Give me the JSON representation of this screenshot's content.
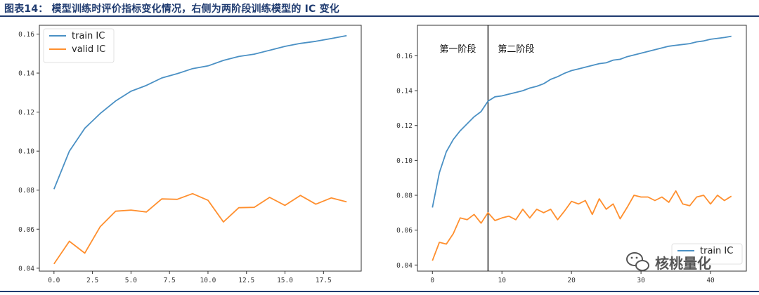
{
  "header": {
    "title": "图表14：  模型训练时评价指标变化情况，右侧为两阶段训练模型的 IC 变化"
  },
  "watermark": {
    "text": "核桃量化",
    "icon": "wechat-icon"
  },
  "colors": {
    "train": "#4a90c4",
    "valid": "#ff8f2e",
    "header": "#1f3b70"
  },
  "chart_data": [
    {
      "type": "line",
      "title": "",
      "xlabel": "",
      "ylabel": "",
      "xlim": [
        -0.95,
        19.95
      ],
      "ylim": [
        0.0385,
        0.1645
      ],
      "xticks": [
        "0.0",
        "2.5",
        "5.0",
        "7.5",
        "10.0",
        "12.5",
        "15.0",
        "17.5"
      ],
      "xtick_values": [
        0,
        2.5,
        5,
        7.5,
        10,
        12.5,
        15,
        17.5
      ],
      "yticks": [
        "0.04",
        "0.06",
        "0.08",
        "0.10",
        "0.12",
        "0.14",
        "0.16"
      ],
      "ytick_values": [
        0.04,
        0.06,
        0.08,
        0.1,
        0.12,
        0.14,
        0.16
      ],
      "legend_position": "upper-left",
      "series": [
        {
          "name": "train IC",
          "color": "#4a90c4",
          "x": [
            0,
            1,
            2,
            3,
            4,
            5,
            6,
            7,
            8,
            9,
            10,
            11,
            12,
            13,
            14,
            15,
            16,
            17,
            18,
            19
          ],
          "values": [
            0.0805,
            0.1,
            0.1117,
            0.1193,
            0.1257,
            0.1307,
            0.1337,
            0.1375,
            0.1397,
            0.1423,
            0.1437,
            0.1465,
            0.1485,
            0.1497,
            0.1517,
            0.1537,
            0.1552,
            0.1563,
            0.1577,
            0.1592
          ]
        },
        {
          "name": "valid IC",
          "color": "#ff8f2e",
          "x": [
            0,
            1,
            2,
            3,
            4,
            5,
            6,
            7,
            8,
            9,
            10,
            11,
            12,
            13,
            14,
            15,
            16,
            17,
            18,
            19
          ],
          "values": [
            0.0422,
            0.0538,
            0.0477,
            0.0613,
            0.0692,
            0.0698,
            0.0688,
            0.0755,
            0.0753,
            0.0782,
            0.0748,
            0.0637,
            0.071,
            0.0712,
            0.0763,
            0.0722,
            0.0773,
            0.0728,
            0.076,
            0.074
          ]
        }
      ]
    },
    {
      "type": "line",
      "title": "",
      "xlabel": "",
      "ylabel": "",
      "xlim": [
        -2.15,
        45.15
      ],
      "ylim": [
        0.0365,
        0.1775
      ],
      "xticks": [
        "0",
        "10",
        "20",
        "30",
        "40"
      ],
      "xtick_values": [
        0,
        10,
        20,
        30,
        40
      ],
      "yticks": [
        "0.04",
        "0.06",
        "0.08",
        "0.10",
        "0.12",
        "0.14",
        "0.16"
      ],
      "ytick_values": [
        0.04,
        0.06,
        0.08,
        0.1,
        0.12,
        0.14,
        0.16
      ],
      "legend_position": "lower-right",
      "stage_divider_x": 8,
      "annotations": [
        "第一阶段",
        "第二阶段"
      ],
      "series": [
        {
          "name": "train IC",
          "color": "#4a90c4",
          "x": [
            0,
            1,
            2,
            3,
            4,
            5,
            6,
            7,
            8,
            9,
            10,
            11,
            12,
            13,
            14,
            15,
            16,
            17,
            18,
            19,
            20,
            21,
            22,
            23,
            24,
            25,
            26,
            27,
            28,
            29,
            30,
            31,
            32,
            33,
            34,
            35,
            36,
            37,
            38,
            39,
            40,
            41,
            42,
            43
          ],
          "values": [
            0.073,
            0.093,
            0.105,
            0.112,
            0.117,
            0.121,
            0.125,
            0.128,
            0.134,
            0.1365,
            0.137,
            0.138,
            0.139,
            0.14,
            0.1415,
            0.1425,
            0.144,
            0.1465,
            0.148,
            0.15,
            0.1515,
            0.1525,
            0.1535,
            0.1545,
            0.1555,
            0.156,
            0.1575,
            0.158,
            0.1595,
            0.1605,
            0.1615,
            0.1625,
            0.1635,
            0.1645,
            0.1655,
            0.166,
            0.1665,
            0.167,
            0.168,
            0.1685,
            0.1695,
            0.17,
            0.1705,
            0.1712
          ]
        },
        {
          "name": "",
          "color": "#ff8f2e",
          "x": [
            0,
            1,
            2,
            3,
            4,
            5,
            6,
            7,
            8,
            9,
            10,
            11,
            12,
            13,
            14,
            15,
            16,
            17,
            18,
            19,
            20,
            21,
            22,
            23,
            24,
            25,
            26,
            27,
            28,
            29,
            30,
            31,
            32,
            33,
            34,
            35,
            36,
            37,
            38,
            39,
            40,
            41,
            42,
            43
          ],
          "values": [
            0.0425,
            0.053,
            0.052,
            0.058,
            0.067,
            0.066,
            0.069,
            0.064,
            0.07,
            0.0655,
            0.067,
            0.068,
            0.066,
            0.072,
            0.067,
            0.072,
            0.07,
            0.072,
            0.066,
            0.071,
            0.0765,
            0.075,
            0.077,
            0.069,
            0.078,
            0.072,
            0.075,
            0.0665,
            0.073,
            0.08,
            0.079,
            0.079,
            0.077,
            0.079,
            0.076,
            0.0825,
            0.075,
            0.074,
            0.079,
            0.08,
            0.075,
            0.08,
            0.077,
            0.0795
          ]
        }
      ]
    }
  ]
}
